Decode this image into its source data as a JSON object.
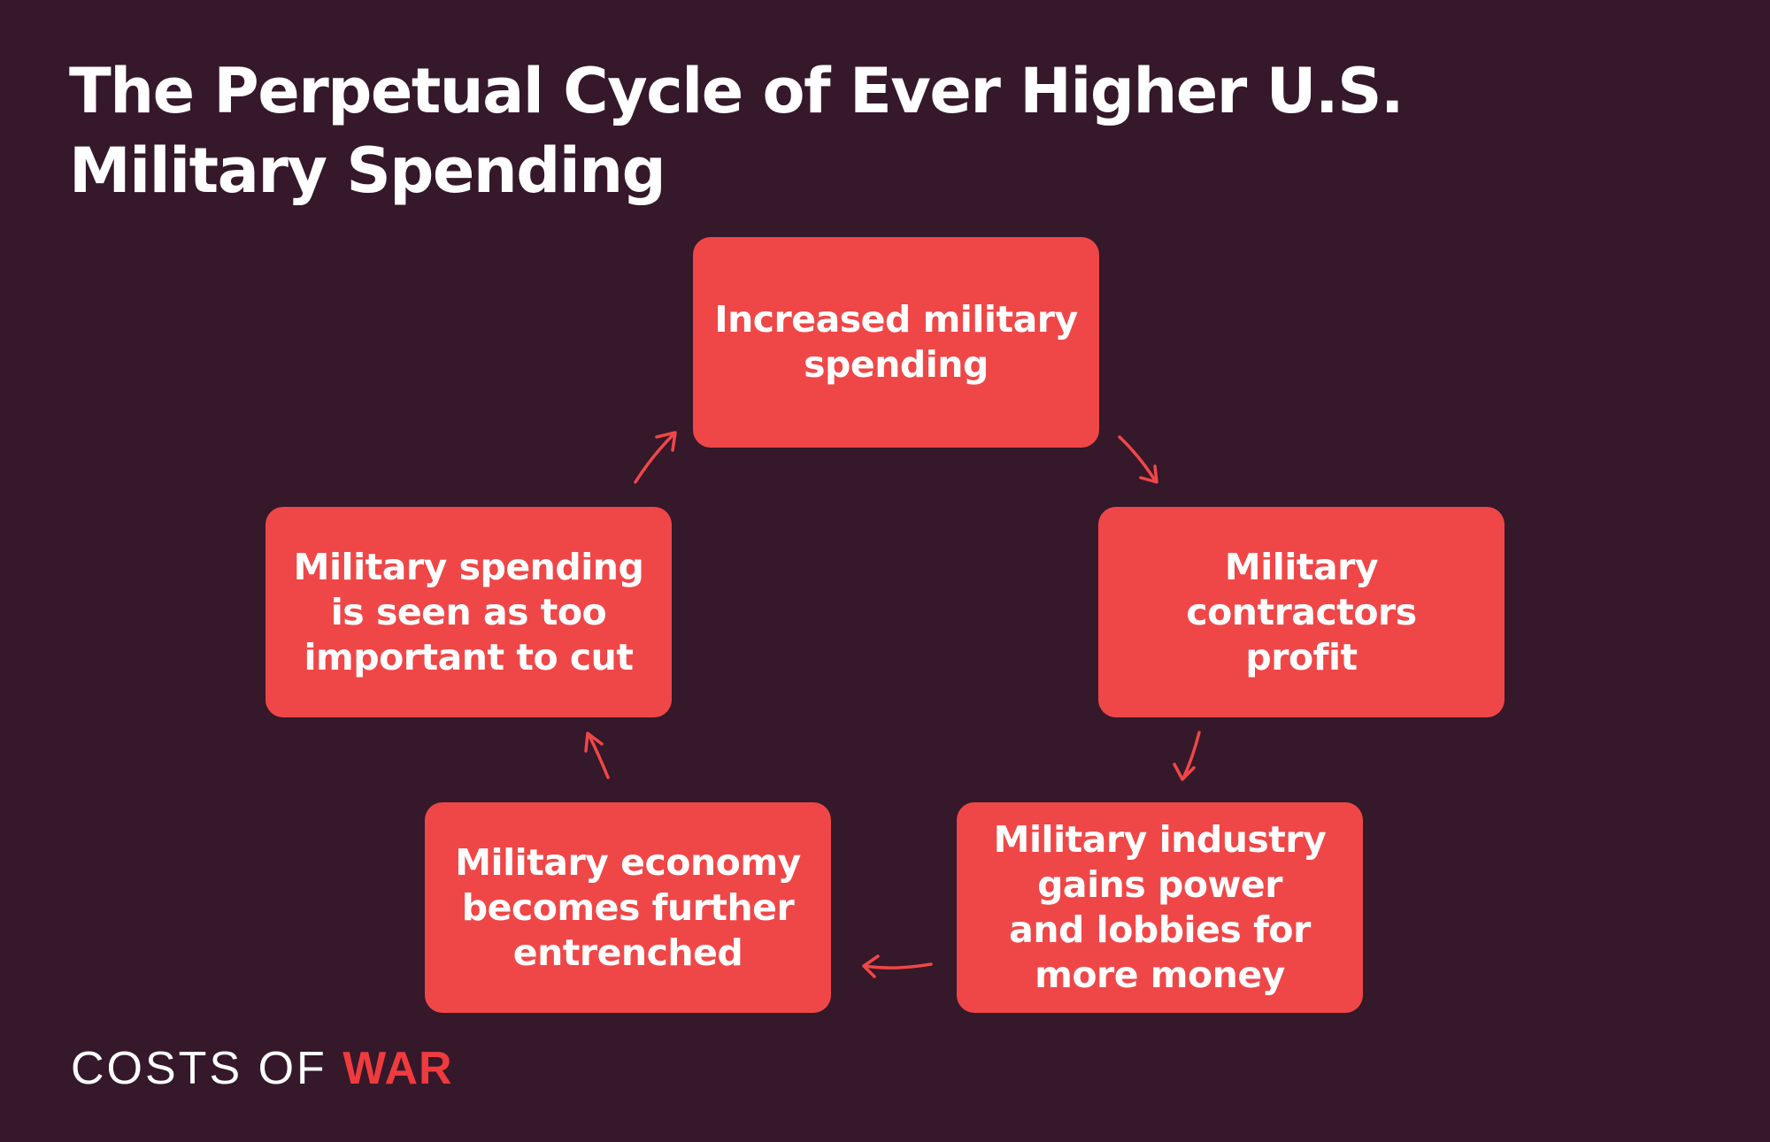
{
  "title": {
    "line1": "The Perpetual Cycle of Ever Higher U.S.",
    "line2": "Military Spending"
  },
  "colors": {
    "background": "#35182a",
    "box": "#ef4748",
    "arrow": "#ef4748",
    "text": "#ffffff",
    "brand_accent": "#ef3b3e"
  },
  "cycle": {
    "steps": [
      {
        "label": "Increased military\nspending"
      },
      {
        "label": "Military\ncontractors\nprofit"
      },
      {
        "label": "Military industry\ngains power\nand lobbies for\nmore money"
      },
      {
        "label": "Military economy\nbecomes further\nentrenched"
      },
      {
        "label": "Military spending\nis seen as too\nimportant to cut"
      }
    ],
    "arrow_icon": "hand-drawn-arrow-icon"
  },
  "brand": {
    "part1": "COSTS OF ",
    "part2": "WAR"
  }
}
